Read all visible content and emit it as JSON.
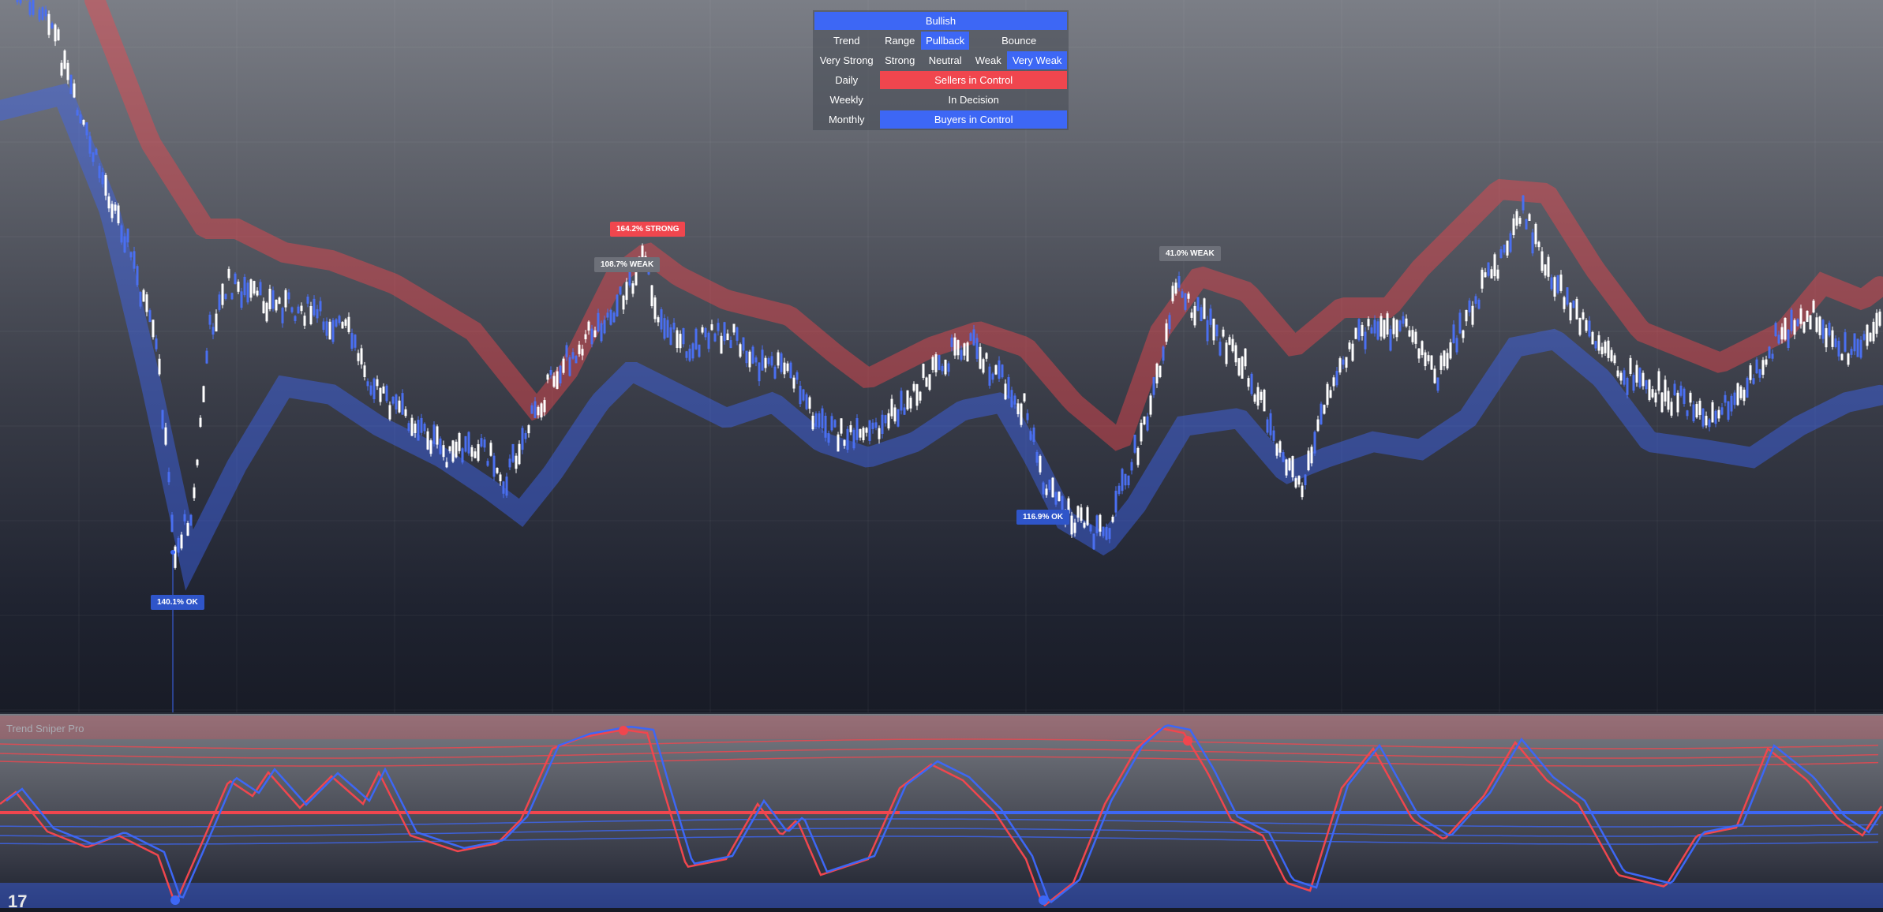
{
  "status_table": {
    "header": "Bullish",
    "market_state": {
      "label": "Trend",
      "options": [
        "Range",
        "Pullback",
        "Bounce"
      ],
      "active": "Pullback"
    },
    "strength": {
      "options": [
        "Very Strong",
        "Strong",
        "Neutral",
        "Weak",
        "Very Weak"
      ],
      "active": "Very Weak"
    },
    "timeframes": [
      {
        "label": "Daily",
        "status": "Sellers in Control",
        "color": "#f0464e"
      },
      {
        "label": "Weekly",
        "status": "In Decision",
        "color": ""
      },
      {
        "label": "Monthly",
        "status": "Buyers in Control",
        "color": "#3d67f5"
      }
    ]
  },
  "price_tags": [
    {
      "text": "164.2% STRONG",
      "style": "red"
    },
    {
      "text": "108.7% WEAK",
      "style": "gray"
    },
    {
      "text": "41.0% WEAK",
      "style": "gray"
    },
    {
      "text": "116.9% OK",
      "style": "blue"
    },
    {
      "text": "140.1% OK",
      "style": "blue"
    }
  ],
  "oscillator": {
    "title": "Trend Sniper Pro"
  },
  "colors": {
    "bull": "#3d67f5",
    "bear": "#f0464e",
    "candle_up": "#ffffff",
    "candle_down": "#4a6ff0"
  },
  "logo": {
    "text": "17"
  }
}
